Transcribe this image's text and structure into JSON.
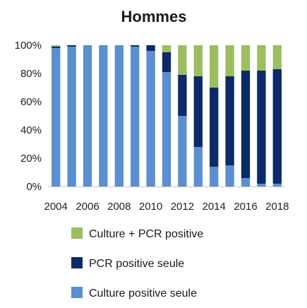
{
  "chart_data": {
    "type": "bar",
    "stacked": true,
    "title": "Hommes",
    "categories": [
      "2004",
      "2005",
      "2006",
      "2007",
      "2008",
      "2009",
      "2010",
      "2011",
      "2012",
      "2013",
      "2014",
      "2015",
      "2016",
      "2017",
      "2018"
    ],
    "x_tick_labels": [
      "2004",
      "2006",
      "2008",
      "2010",
      "2012",
      "2014",
      "2016",
      "2018"
    ],
    "y_tick_labels": [
      "0%",
      "20%",
      "40%",
      "60%",
      "80%",
      "100%"
    ],
    "ylim": [
      0,
      100
    ],
    "series": [
      {
        "name": "Culture positive seule",
        "color": "#5b8fd0",
        "values": [
          98,
          99,
          100,
          100,
          100,
          99,
          96,
          81,
          50,
          28,
          14,
          15,
          6,
          2,
          2
        ]
      },
      {
        "name": "PCR positive seule",
        "color": "#0b2a66",
        "values": [
          1,
          1,
          0,
          0,
          0,
          1,
          4,
          14,
          29,
          50,
          56,
          63,
          76,
          80,
          81
        ]
      },
      {
        "name": "Culture + PCR positive",
        "color": "#9bbe60",
        "values": [
          1,
          0,
          0,
          0,
          0,
          0,
          0,
          5,
          21,
          22,
          30,
          22,
          18,
          18,
          17
        ]
      }
    ],
    "legend": {
      "position": "bottom",
      "order": [
        "Culture + PCR positive",
        "PCR positive seule",
        "Culture positive seule"
      ]
    },
    "grid": false
  }
}
